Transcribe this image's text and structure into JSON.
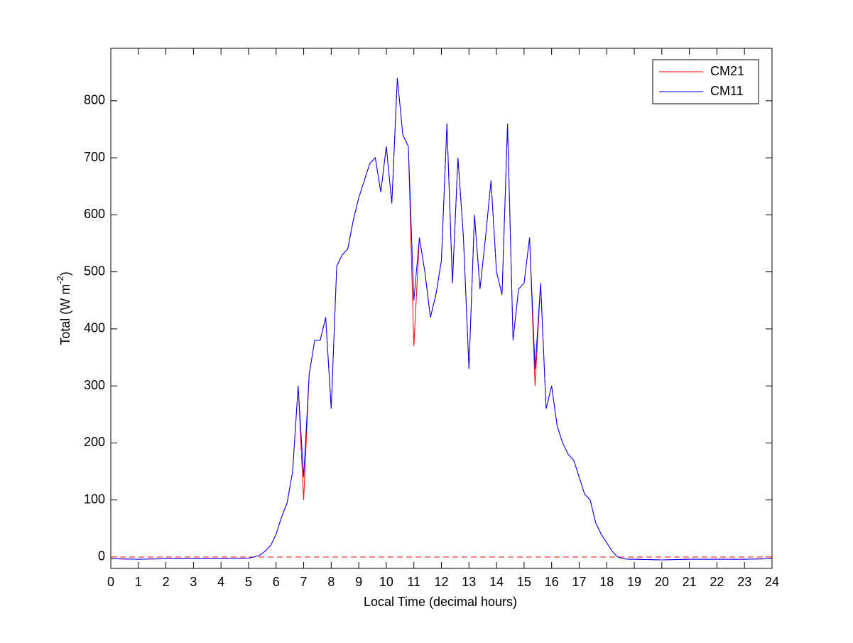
{
  "chart_data": {
    "type": "line",
    "xlabel": "Local Time (decimal hours)",
    "ylabel_parts": [
      "Total (W m",
      "-2",
      ")"
    ],
    "x": [
      0,
      1,
      2,
      3,
      4,
      5,
      5.2,
      5.4,
      5.6,
      5.8,
      6.0,
      6.2,
      6.4,
      6.6,
      6.8,
      7.0,
      7.2,
      7.4,
      7.6,
      7.8,
      8.0,
      8.2,
      8.4,
      8.6,
      8.8,
      9.0,
      9.2,
      9.4,
      9.6,
      9.8,
      10.0,
      10.2,
      10.4,
      10.6,
      10.8,
      11.0,
      11.2,
      11.4,
      11.6,
      11.8,
      12.0,
      12.2,
      12.4,
      12.6,
      12.8,
      13.0,
      13.2,
      13.4,
      13.6,
      13.8,
      14.0,
      14.2,
      14.4,
      14.6,
      14.8,
      15.0,
      15.2,
      15.4,
      15.6,
      15.8,
      16.0,
      16.2,
      16.4,
      16.6,
      16.8,
      17.0,
      17.2,
      17.4,
      17.6,
      17.8,
      18.0,
      18.2,
      18.4,
      18.6,
      18.8,
      19,
      20,
      21,
      22,
      23,
      24
    ],
    "series": [
      {
        "name": "CM21",
        "color": "#ff0000",
        "values": [
          -3,
          -4,
          -3,
          -3,
          -3,
          -2,
          0,
          3,
          10,
          20,
          40,
          70,
          95,
          150,
          300,
          100,
          320,
          380,
          380,
          420,
          260,
          510,
          530,
          540,
          590,
          630,
          660,
          690,
          700,
          640,
          720,
          620,
          840,
          740,
          720,
          370,
          560,
          500,
          420,
          460,
          520,
          760,
          480,
          700,
          560,
          330,
          600,
          470,
          560,
          660,
          500,
          460,
          760,
          380,
          470,
          480,
          560,
          300,
          480,
          260,
          300,
          230,
          200,
          180,
          170,
          140,
          110,
          100,
          60,
          40,
          25,
          10,
          0,
          -3,
          -4,
          -4,
          -5,
          -4,
          -4,
          -4,
          -3
        ]
      },
      {
        "name": "CM11",
        "color": "#0000ff",
        "values": [
          -3,
          -4,
          -3,
          -3,
          -3,
          -2,
          0,
          3,
          10,
          20,
          40,
          70,
          95,
          150,
          300,
          140,
          320,
          380,
          380,
          420,
          260,
          510,
          530,
          540,
          590,
          630,
          660,
          690,
          700,
          640,
          720,
          620,
          840,
          740,
          720,
          450,
          560,
          500,
          420,
          460,
          520,
          760,
          480,
          700,
          560,
          330,
          600,
          470,
          560,
          660,
          500,
          460,
          760,
          380,
          470,
          480,
          560,
          330,
          480,
          260,
          300,
          230,
          200,
          180,
          170,
          140,
          110,
          100,
          60,
          40,
          25,
          10,
          0,
          -3,
          -4,
          -4,
          -5,
          -4,
          -4,
          -4,
          -3
        ]
      }
    ],
    "hline": {
      "value": 0,
      "color": "#ff0000"
    },
    "xlim": [
      0,
      24
    ],
    "xticks": [
      0,
      1,
      2,
      3,
      4,
      5,
      6,
      7,
      8,
      9,
      10,
      11,
      12,
      13,
      14,
      15,
      16,
      17,
      18,
      19,
      20,
      21,
      22,
      23,
      24
    ],
    "ylim": [
      -20,
      892
    ],
    "yticks": [
      0,
      100,
      200,
      300,
      400,
      500,
      600,
      700,
      800
    ],
    "legend": "upper right"
  }
}
